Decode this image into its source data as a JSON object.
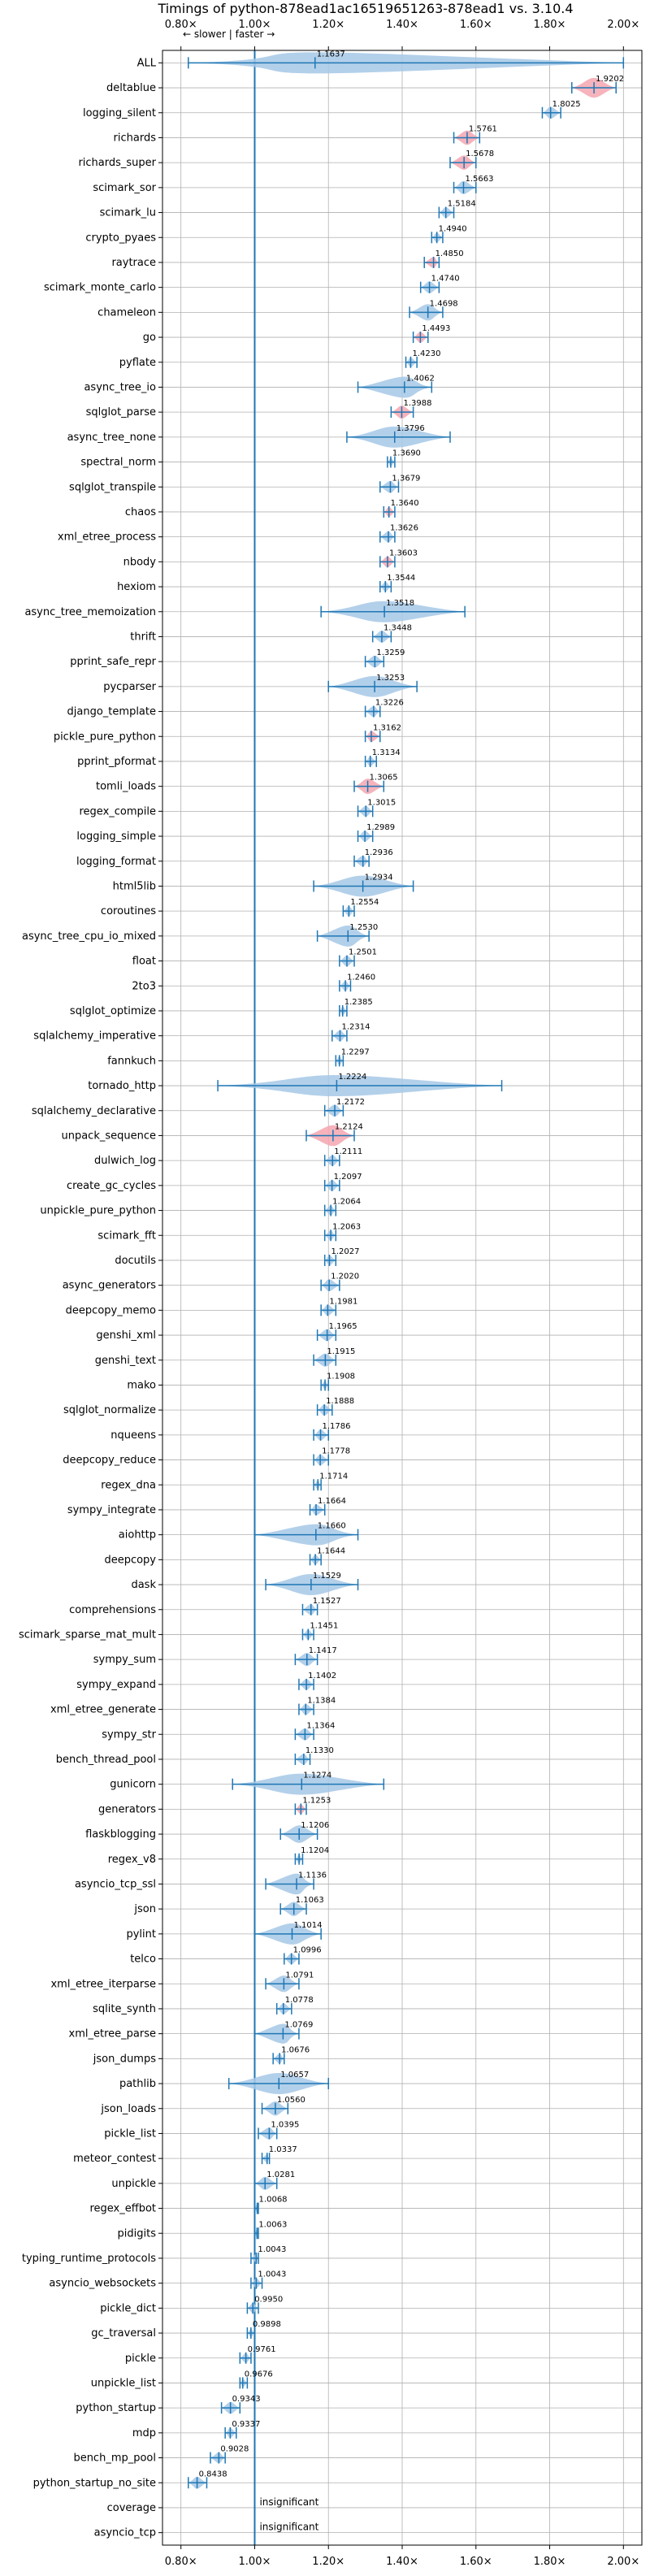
{
  "chart_data": {
    "type": "violin",
    "title": "Timings of python-878ead1ac16519651263-878ead1 vs. 3.10.4",
    "xlim": [
      0.75,
      2.05
    ],
    "xticks": [
      0.8,
      1.0,
      1.2,
      1.4,
      1.6,
      1.8,
      2.0
    ],
    "xtick_labels": [
      "0.80×",
      "1.00×",
      "1.20×",
      "1.40×",
      "1.60×",
      "1.80×",
      "2.00×"
    ],
    "reference_line": 1.0,
    "annotation": "← slower | faster →",
    "grid": true,
    "colors": {
      "faster": "#a6c8e6",
      "slower": "#f4a6b0",
      "line": "#1f77b4",
      "grid": "#b0b0b0"
    },
    "benchmarks": [
      {
        "name": "ALL",
        "value": 1.1637,
        "label": "1.1637",
        "lo": 0.82,
        "hi": 2.0,
        "status": "faster"
      },
      {
        "name": "deltablue",
        "value": 1.9202,
        "label": "1.9202",
        "lo": 1.86,
        "hi": 1.98,
        "status": "slower"
      },
      {
        "name": "logging_silent",
        "value": 1.8025,
        "label": "1.8025",
        "lo": 1.78,
        "hi": 1.83,
        "status": "faster"
      },
      {
        "name": "richards",
        "value": 1.5761,
        "label": "1.5761",
        "lo": 1.54,
        "hi": 1.61,
        "status": "slower"
      },
      {
        "name": "richards_super",
        "value": 1.5678,
        "label": "1.5678",
        "lo": 1.53,
        "hi": 1.6,
        "status": "slower"
      },
      {
        "name": "scimark_sor",
        "value": 1.5663,
        "label": "1.5663",
        "lo": 1.54,
        "hi": 1.6,
        "status": "faster"
      },
      {
        "name": "scimark_lu",
        "value": 1.5184,
        "label": "1.5184",
        "lo": 1.5,
        "hi": 1.54,
        "status": "faster"
      },
      {
        "name": "crypto_pyaes",
        "value": 1.494,
        "label": "1.4940",
        "lo": 1.48,
        "hi": 1.51,
        "status": "faster"
      },
      {
        "name": "raytrace",
        "value": 1.485,
        "label": "1.4850",
        "lo": 1.46,
        "hi": 1.5,
        "status": "slower"
      },
      {
        "name": "scimark_monte_carlo",
        "value": 1.474,
        "label": "1.4740",
        "lo": 1.45,
        "hi": 1.5,
        "status": "faster"
      },
      {
        "name": "chameleon",
        "value": 1.4698,
        "label": "1.4698",
        "lo": 1.42,
        "hi": 1.51,
        "status": "faster"
      },
      {
        "name": "go",
        "value": 1.4493,
        "label": "1.4493",
        "lo": 1.43,
        "hi": 1.47,
        "status": "slower"
      },
      {
        "name": "pyflate",
        "value": 1.423,
        "label": "1.4230",
        "lo": 1.41,
        "hi": 1.44,
        "status": "faster"
      },
      {
        "name": "async_tree_io",
        "value": 1.4062,
        "label": "1.4062",
        "lo": 1.28,
        "hi": 1.48,
        "status": "faster"
      },
      {
        "name": "sqlglot_parse",
        "value": 1.3988,
        "label": "1.3988",
        "lo": 1.37,
        "hi": 1.43,
        "status": "slower"
      },
      {
        "name": "async_tree_none",
        "value": 1.3796,
        "label": "1.3796",
        "lo": 1.25,
        "hi": 1.53,
        "status": "faster"
      },
      {
        "name": "spectral_norm",
        "value": 1.369,
        "label": "1.3690",
        "lo": 1.36,
        "hi": 1.38,
        "status": "faster"
      },
      {
        "name": "sqlglot_transpile",
        "value": 1.3679,
        "label": "1.3679",
        "lo": 1.34,
        "hi": 1.39,
        "status": "faster"
      },
      {
        "name": "chaos",
        "value": 1.364,
        "label": "1.3640",
        "lo": 1.35,
        "hi": 1.38,
        "status": "slower"
      },
      {
        "name": "xml_etree_process",
        "value": 1.3626,
        "label": "1.3626",
        "lo": 1.34,
        "hi": 1.38,
        "status": "faster"
      },
      {
        "name": "nbody",
        "value": 1.3603,
        "label": "1.3603",
        "lo": 1.34,
        "hi": 1.38,
        "status": "slower"
      },
      {
        "name": "hexiom",
        "value": 1.3544,
        "label": "1.3544",
        "lo": 1.34,
        "hi": 1.37,
        "status": "faster"
      },
      {
        "name": "async_tree_memoization",
        "value": 1.3518,
        "label": "1.3518",
        "lo": 1.18,
        "hi": 1.57,
        "status": "faster"
      },
      {
        "name": "thrift",
        "value": 1.3448,
        "label": "1.3448",
        "lo": 1.32,
        "hi": 1.37,
        "status": "faster"
      },
      {
        "name": "pprint_safe_repr",
        "value": 1.3259,
        "label": "1.3259",
        "lo": 1.3,
        "hi": 1.35,
        "status": "faster"
      },
      {
        "name": "pycparser",
        "value": 1.3253,
        "label": "1.3253",
        "lo": 1.2,
        "hi": 1.44,
        "status": "faster"
      },
      {
        "name": "django_template",
        "value": 1.3226,
        "label": "1.3226",
        "lo": 1.3,
        "hi": 1.34,
        "status": "faster"
      },
      {
        "name": "pickle_pure_python",
        "value": 1.3162,
        "label": "1.3162",
        "lo": 1.3,
        "hi": 1.34,
        "status": "slower"
      },
      {
        "name": "pprint_pformat",
        "value": 1.3134,
        "label": "1.3134",
        "lo": 1.3,
        "hi": 1.33,
        "status": "faster"
      },
      {
        "name": "tomli_loads",
        "value": 1.3065,
        "label": "1.3065",
        "lo": 1.27,
        "hi": 1.35,
        "status": "slower"
      },
      {
        "name": "regex_compile",
        "value": 1.3015,
        "label": "1.3015",
        "lo": 1.28,
        "hi": 1.32,
        "status": "faster"
      },
      {
        "name": "logging_simple",
        "value": 1.2989,
        "label": "1.2989",
        "lo": 1.28,
        "hi": 1.32,
        "status": "faster"
      },
      {
        "name": "logging_format",
        "value": 1.2936,
        "label": "1.2936",
        "lo": 1.27,
        "hi": 1.31,
        "status": "faster"
      },
      {
        "name": "html5lib",
        "value": 1.2934,
        "label": "1.2934",
        "lo": 1.16,
        "hi": 1.43,
        "status": "faster"
      },
      {
        "name": "coroutines",
        "value": 1.2554,
        "label": "1.2554",
        "lo": 1.24,
        "hi": 1.27,
        "status": "faster"
      },
      {
        "name": "async_tree_cpu_io_mixed",
        "value": 1.253,
        "label": "1.2530",
        "lo": 1.17,
        "hi": 1.31,
        "status": "faster"
      },
      {
        "name": "float",
        "value": 1.2501,
        "label": "1.2501",
        "lo": 1.23,
        "hi": 1.27,
        "status": "faster"
      },
      {
        "name": "2to3",
        "value": 1.246,
        "label": "1.2460",
        "lo": 1.23,
        "hi": 1.26,
        "status": "faster"
      },
      {
        "name": "sqlglot_optimize",
        "value": 1.2385,
        "label": "1.2385",
        "lo": 1.23,
        "hi": 1.25,
        "status": "faster"
      },
      {
        "name": "sqlalchemy_imperative",
        "value": 1.2314,
        "label": "1.2314",
        "lo": 1.21,
        "hi": 1.25,
        "status": "faster"
      },
      {
        "name": "fannkuch",
        "value": 1.2297,
        "label": "1.2297",
        "lo": 1.22,
        "hi": 1.24,
        "status": "faster"
      },
      {
        "name": "tornado_http",
        "value": 1.2224,
        "label": "1.2224",
        "lo": 0.9,
        "hi": 1.67,
        "status": "faster"
      },
      {
        "name": "sqlalchemy_declarative",
        "value": 1.2172,
        "label": "1.2172",
        "lo": 1.19,
        "hi": 1.24,
        "status": "faster"
      },
      {
        "name": "unpack_sequence",
        "value": 1.2124,
        "label": "1.2124",
        "lo": 1.14,
        "hi": 1.27,
        "status": "slower"
      },
      {
        "name": "dulwich_log",
        "value": 1.2111,
        "label": "1.2111",
        "lo": 1.19,
        "hi": 1.23,
        "status": "faster"
      },
      {
        "name": "create_gc_cycles",
        "value": 1.2097,
        "label": "1.2097",
        "lo": 1.19,
        "hi": 1.23,
        "status": "faster"
      },
      {
        "name": "unpickle_pure_python",
        "value": 1.2064,
        "label": "1.2064",
        "lo": 1.19,
        "hi": 1.22,
        "status": "faster"
      },
      {
        "name": "scimark_fft",
        "value": 1.2063,
        "label": "1.2063",
        "lo": 1.19,
        "hi": 1.22,
        "status": "faster"
      },
      {
        "name": "docutils",
        "value": 1.2027,
        "label": "1.2027",
        "lo": 1.19,
        "hi": 1.22,
        "status": "faster"
      },
      {
        "name": "async_generators",
        "value": 1.202,
        "label": "1.2020",
        "lo": 1.18,
        "hi": 1.23,
        "status": "faster"
      },
      {
        "name": "deepcopy_memo",
        "value": 1.1981,
        "label": "1.1981",
        "lo": 1.18,
        "hi": 1.22,
        "status": "faster"
      },
      {
        "name": "genshi_xml",
        "value": 1.1965,
        "label": "1.1965",
        "lo": 1.17,
        "hi": 1.22,
        "status": "faster"
      },
      {
        "name": "genshi_text",
        "value": 1.1915,
        "label": "1.1915",
        "lo": 1.16,
        "hi": 1.22,
        "status": "faster"
      },
      {
        "name": "mako",
        "value": 1.1908,
        "label": "1.1908",
        "lo": 1.18,
        "hi": 1.2,
        "status": "faster"
      },
      {
        "name": "sqlglot_normalize",
        "value": 1.1888,
        "label": "1.1888",
        "lo": 1.17,
        "hi": 1.21,
        "status": "faster"
      },
      {
        "name": "nqueens",
        "value": 1.1786,
        "label": "1.1786",
        "lo": 1.16,
        "hi": 1.2,
        "status": "faster"
      },
      {
        "name": "deepcopy_reduce",
        "value": 1.1778,
        "label": "1.1778",
        "lo": 1.16,
        "hi": 1.2,
        "status": "faster"
      },
      {
        "name": "regex_dna",
        "value": 1.1714,
        "label": "1.1714",
        "lo": 1.16,
        "hi": 1.18,
        "status": "faster"
      },
      {
        "name": "sympy_integrate",
        "value": 1.1664,
        "label": "1.1664",
        "lo": 1.15,
        "hi": 1.19,
        "status": "faster"
      },
      {
        "name": "aiohttp",
        "value": 1.166,
        "label": "1.1660",
        "lo": 1.0,
        "hi": 1.28,
        "status": "faster"
      },
      {
        "name": "deepcopy",
        "value": 1.1644,
        "label": "1.1644",
        "lo": 1.15,
        "hi": 1.18,
        "status": "faster"
      },
      {
        "name": "dask",
        "value": 1.1529,
        "label": "1.1529",
        "lo": 1.03,
        "hi": 1.28,
        "status": "faster"
      },
      {
        "name": "comprehensions",
        "value": 1.1527,
        "label": "1.1527",
        "lo": 1.13,
        "hi": 1.17,
        "status": "faster"
      },
      {
        "name": "scimark_sparse_mat_mult",
        "value": 1.1451,
        "label": "1.1451",
        "lo": 1.13,
        "hi": 1.16,
        "status": "faster"
      },
      {
        "name": "sympy_sum",
        "value": 1.1417,
        "label": "1.1417",
        "lo": 1.11,
        "hi": 1.17,
        "status": "faster"
      },
      {
        "name": "sympy_expand",
        "value": 1.1402,
        "label": "1.1402",
        "lo": 1.12,
        "hi": 1.16,
        "status": "faster"
      },
      {
        "name": "xml_etree_generate",
        "value": 1.1384,
        "label": "1.1384",
        "lo": 1.12,
        "hi": 1.16,
        "status": "faster"
      },
      {
        "name": "sympy_str",
        "value": 1.1364,
        "label": "1.1364",
        "lo": 1.11,
        "hi": 1.16,
        "status": "faster"
      },
      {
        "name": "bench_thread_pool",
        "value": 1.133,
        "label": "1.1330",
        "lo": 1.11,
        "hi": 1.15,
        "status": "faster"
      },
      {
        "name": "gunicorn",
        "value": 1.1274,
        "label": "1.1274",
        "lo": 0.94,
        "hi": 1.35,
        "status": "faster"
      },
      {
        "name": "generators",
        "value": 1.1253,
        "label": "1.1253",
        "lo": 1.11,
        "hi": 1.14,
        "status": "slower"
      },
      {
        "name": "flaskblogging",
        "value": 1.1206,
        "label": "1.1206",
        "lo": 1.07,
        "hi": 1.17,
        "status": "faster"
      },
      {
        "name": "regex_v8",
        "value": 1.1204,
        "label": "1.1204",
        "lo": 1.11,
        "hi": 1.13,
        "status": "faster"
      },
      {
        "name": "asyncio_tcp_ssl",
        "value": 1.1136,
        "label": "1.1136",
        "lo": 1.03,
        "hi": 1.16,
        "status": "faster"
      },
      {
        "name": "json",
        "value": 1.1063,
        "label": "1.1063",
        "lo": 1.07,
        "hi": 1.14,
        "status": "faster"
      },
      {
        "name": "pylint",
        "value": 1.1014,
        "label": "1.1014",
        "lo": 1.0,
        "hi": 1.18,
        "status": "faster"
      },
      {
        "name": "telco",
        "value": 1.0996,
        "label": "1.0996",
        "lo": 1.08,
        "hi": 1.12,
        "status": "faster"
      },
      {
        "name": "xml_etree_iterparse",
        "value": 1.0791,
        "label": "1.0791",
        "lo": 1.03,
        "hi": 1.12,
        "status": "faster"
      },
      {
        "name": "sqlite_synth",
        "value": 1.0778,
        "label": "1.0778",
        "lo": 1.06,
        "hi": 1.1,
        "status": "faster"
      },
      {
        "name": "xml_etree_parse",
        "value": 1.0769,
        "label": "1.0769",
        "lo": 1.0,
        "hi": 1.12,
        "status": "faster"
      },
      {
        "name": "json_dumps",
        "value": 1.0676,
        "label": "1.0676",
        "lo": 1.05,
        "hi": 1.08,
        "status": "faster"
      },
      {
        "name": "pathlib",
        "value": 1.0657,
        "label": "1.0657",
        "lo": 0.93,
        "hi": 1.2,
        "status": "faster"
      },
      {
        "name": "json_loads",
        "value": 1.056,
        "label": "1.0560",
        "lo": 1.02,
        "hi": 1.09,
        "status": "faster"
      },
      {
        "name": "pickle_list",
        "value": 1.0395,
        "label": "1.0395",
        "lo": 1.01,
        "hi": 1.06,
        "status": "faster"
      },
      {
        "name": "meteor_contest",
        "value": 1.0337,
        "label": "1.0337",
        "lo": 1.02,
        "hi": 1.04,
        "status": "faster"
      },
      {
        "name": "unpickle",
        "value": 1.0281,
        "label": "1.0281",
        "lo": 1.0,
        "hi": 1.06,
        "status": "faster"
      },
      {
        "name": "regex_effbot",
        "value": 1.0068,
        "label": "1.0068",
        "lo": 1.0,
        "hi": 1.01,
        "status": "faster"
      },
      {
        "name": "pidigits",
        "value": 1.0063,
        "label": "1.0063",
        "lo": 1.0,
        "hi": 1.01,
        "status": "faster"
      },
      {
        "name": "typing_runtime_protocols",
        "value": 1.0043,
        "label": "1.0043",
        "lo": 0.99,
        "hi": 1.01,
        "status": "faster"
      },
      {
        "name": "asyncio_websockets",
        "value": 1.0043,
        "label": "1.0043",
        "lo": 0.99,
        "hi": 1.02,
        "status": "faster"
      },
      {
        "name": "pickle_dict",
        "value": 0.995,
        "label": "0.9950",
        "lo": 0.98,
        "hi": 1.01,
        "status": "faster"
      },
      {
        "name": "gc_traversal",
        "value": 0.9898,
        "label": "0.9898",
        "lo": 0.98,
        "hi": 1.0,
        "status": "faster"
      },
      {
        "name": "pickle",
        "value": 0.9761,
        "label": "0.9761",
        "lo": 0.96,
        "hi": 0.99,
        "status": "faster"
      },
      {
        "name": "unpickle_list",
        "value": 0.9676,
        "label": "0.9676",
        "lo": 0.96,
        "hi": 0.98,
        "status": "faster"
      },
      {
        "name": "python_startup",
        "value": 0.9343,
        "label": "0.9343",
        "lo": 0.91,
        "hi": 0.96,
        "status": "faster"
      },
      {
        "name": "mdp",
        "value": 0.9337,
        "label": "0.9337",
        "lo": 0.92,
        "hi": 0.95,
        "status": "faster"
      },
      {
        "name": "bench_mp_pool",
        "value": 0.9028,
        "label": "0.9028",
        "lo": 0.88,
        "hi": 0.92,
        "status": "faster"
      },
      {
        "name": "python_startup_no_site",
        "value": 0.8438,
        "label": "0.8438",
        "lo": 0.82,
        "hi": 0.87,
        "status": "faster"
      },
      {
        "name": "coverage",
        "value": null,
        "label": "insignificant",
        "status": "insignificant"
      },
      {
        "name": "asyncio_tcp",
        "value": null,
        "label": "insignificant",
        "status": "insignificant"
      }
    ]
  }
}
